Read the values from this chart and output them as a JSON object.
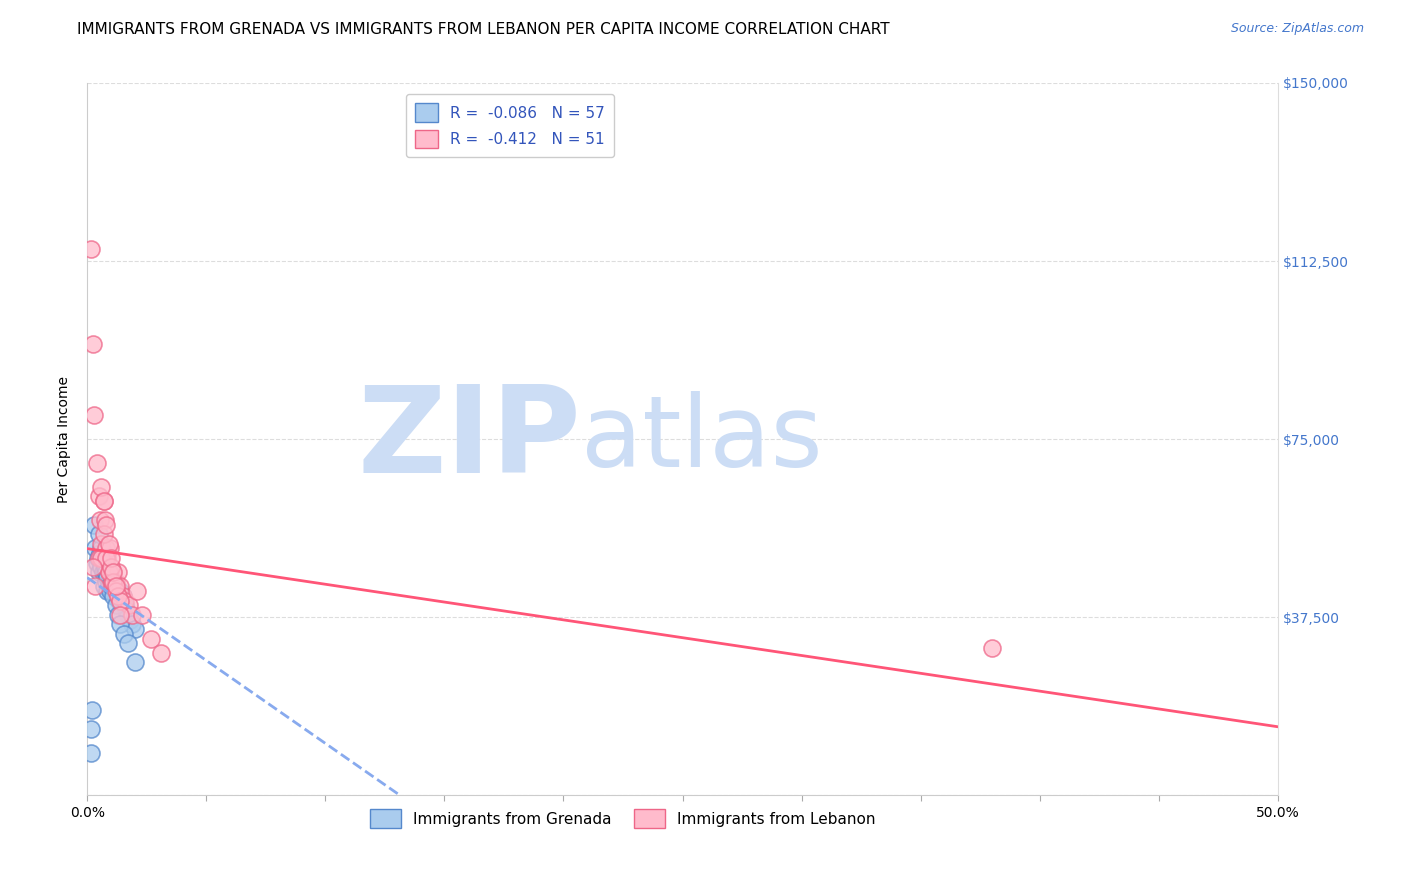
{
  "title": "IMMIGRANTS FROM GRENADA VS IMMIGRANTS FROM LEBANON PER CAPITA INCOME CORRELATION CHART",
  "source": "Source: ZipAtlas.com",
  "ylabel": "Per Capita Income",
  "xlim": [
    0,
    0.5
  ],
  "ylim": [
    0,
    150000
  ],
  "yticks": [
    0,
    37500,
    75000,
    112500,
    150000
  ],
  "ytick_labels": [
    "",
    "$37,500",
    "$75,000",
    "$112,500",
    "$150,000"
  ],
  "xticks": [
    0.0,
    0.05,
    0.1,
    0.15,
    0.2,
    0.25,
    0.3,
    0.35,
    0.4,
    0.45,
    0.5
  ],
  "xtick_labels": [
    "0.0%",
    "",
    "",
    "",
    "",
    "",
    "",
    "",
    "",
    "",
    "50.0%"
  ],
  "grenada_scatter_face": "#aaccee",
  "grenada_scatter_edge": "#5588cc",
  "lebanon_scatter_face": "#ffbbcc",
  "lebanon_scatter_edge": "#ee6688",
  "grenada_line_color": "#88aaee",
  "lebanon_line_color": "#ff5577",
  "watermark_zip_color": "#ccddf5",
  "watermark_atlas_color": "#ccddf5",
  "right_tick_color": "#4477cc",
  "source_color": "#4477cc",
  "title_fontsize": 11,
  "axis_label_fontsize": 10,
  "tick_fontsize": 10,
  "legend_fontsize": 11,
  "grenada_x": [
    0.0015,
    0.002,
    0.003,
    0.0035,
    0.004,
    0.0045,
    0.005,
    0.0055,
    0.006,
    0.006,
    0.0065,
    0.007,
    0.007,
    0.0075,
    0.008,
    0.008,
    0.0085,
    0.009,
    0.009,
    0.0095,
    0.01,
    0.01,
    0.0105,
    0.011,
    0.0115,
    0.012,
    0.012,
    0.0125,
    0.013,
    0.0135,
    0.014,
    0.0145,
    0.015,
    0.0155,
    0.016,
    0.0165,
    0.017,
    0.018,
    0.019,
    0.02,
    0.005,
    0.006,
    0.007,
    0.0075,
    0.008,
    0.0085,
    0.009,
    0.0095,
    0.01,
    0.011,
    0.012,
    0.013,
    0.014,
    0.0155,
    0.017,
    0.02,
    0.0015
  ],
  "grenada_y": [
    14000,
    18000,
    57000,
    52000,
    49000,
    50000,
    47000,
    51000,
    48000,
    52000,
    47000,
    50000,
    44000,
    47000,
    50000,
    45000,
    43000,
    47000,
    45000,
    44000,
    47000,
    43000,
    45000,
    43000,
    44000,
    44000,
    42000,
    43000,
    42000,
    41000,
    43000,
    41000,
    42000,
    41000,
    40000,
    39000,
    38000,
    37000,
    36000,
    35000,
    55000,
    50000,
    51000,
    48000,
    47000,
    46000,
    44000,
    43000,
    44000,
    42000,
    40000,
    38000,
    36000,
    34000,
    32000,
    28000,
    9000
  ],
  "lebanon_x": [
    0.0015,
    0.0025,
    0.003,
    0.004,
    0.005,
    0.0055,
    0.006,
    0.0065,
    0.007,
    0.0075,
    0.008,
    0.0085,
    0.009,
    0.0095,
    0.01,
    0.0105,
    0.011,
    0.0115,
    0.012,
    0.0125,
    0.013,
    0.014,
    0.015,
    0.016,
    0.0175,
    0.019,
    0.021,
    0.023,
    0.027,
    0.031,
    0.005,
    0.006,
    0.007,
    0.008,
    0.009,
    0.01,
    0.011,
    0.012,
    0.013,
    0.014,
    0.006,
    0.007,
    0.008,
    0.009,
    0.01,
    0.011,
    0.012,
    0.014,
    0.38,
    0.0025,
    0.0035
  ],
  "lebanon_y": [
    115000,
    95000,
    80000,
    70000,
    63000,
    58000,
    53000,
    50000,
    62000,
    58000,
    52000,
    50000,
    47000,
    52000,
    47000,
    45000,
    47000,
    44000,
    45000,
    43000,
    47000,
    44000,
    42000,
    41000,
    40000,
    38000,
    43000,
    38000,
    33000,
    30000,
    50000,
    50000,
    55000,
    50000,
    47000,
    48000,
    45000,
    43000,
    42000,
    41000,
    65000,
    62000,
    57000,
    53000,
    50000,
    47000,
    44000,
    38000,
    31000,
    48000,
    44000
  ]
}
